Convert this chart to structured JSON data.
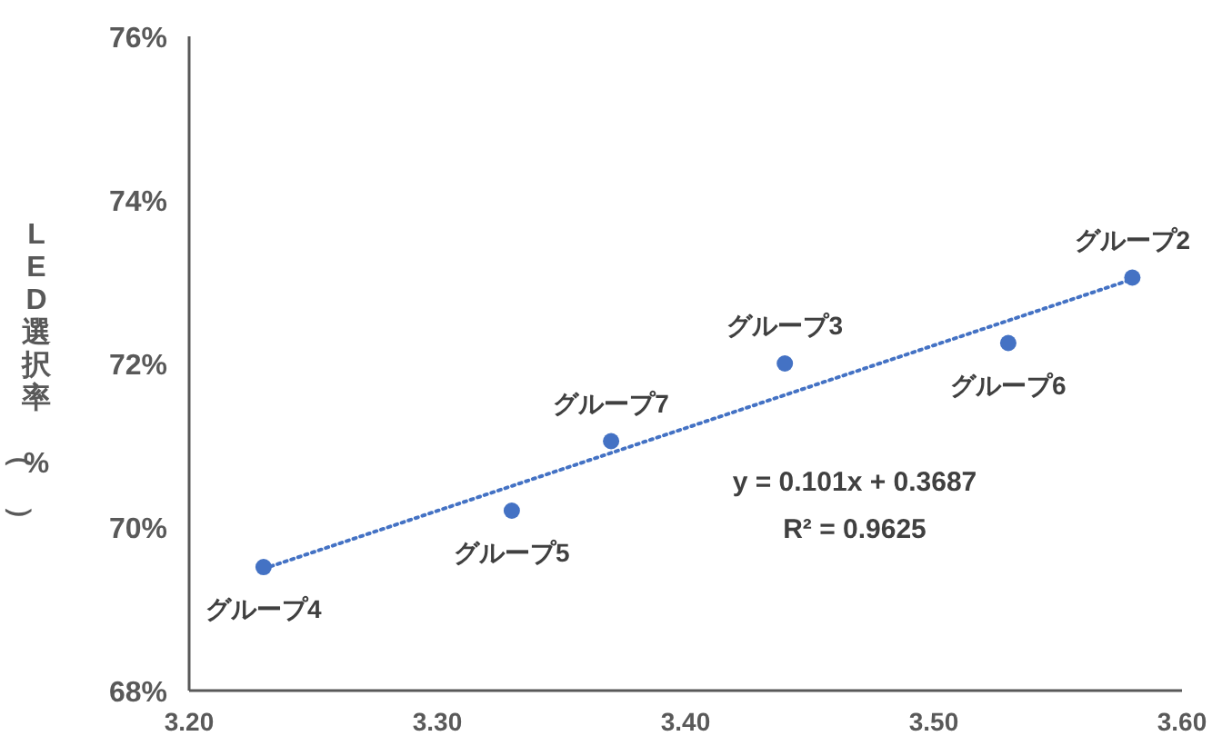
{
  "chart_data": {
    "type": "scatter",
    "ylabel": "LED選択率（%）",
    "xlim": [
      3.2,
      3.6
    ],
    "xticks": [
      {
        "value": 3.2,
        "label": "3.20"
      },
      {
        "value": 3.3,
        "label": "3.30"
      },
      {
        "value": 3.4,
        "label": "3.40"
      },
      {
        "value": 3.5,
        "label": "3.50"
      },
      {
        "value": 3.6,
        "label": "3.60"
      }
    ],
    "ylim": [
      68,
      76
    ],
    "yticks": [
      {
        "value": 68,
        "label": "68%"
      },
      {
        "value": 70,
        "label": "70%"
      },
      {
        "value": 72,
        "label": "72%"
      },
      {
        "value": 74,
        "label": "74%"
      },
      {
        "value": 76,
        "label": "76%"
      }
    ],
    "grid": false,
    "series": [
      {
        "marker": "circle",
        "color": "#4472c4",
        "x": [
          3.23,
          3.33,
          3.37,
          3.44,
          3.53,
          3.58
        ],
        "values": [
          69.51,
          70.2,
          71.05,
          72.0,
          72.25,
          73.05
        ]
      },
      {
        "type": "line",
        "color": "#4472c4",
        "line_style": "dotted",
        "x": [
          3.23,
          3.58
        ],
        "values": [
          69.49,
          73.03
        ]
      }
    ],
    "annotations": [
      {
        "text": "グループ4",
        "x": 3.23,
        "y": 69.51
      },
      {
        "text": "グループ5",
        "x": 3.33,
        "y": 70.2
      },
      {
        "text": "グループ7",
        "x": 3.37,
        "y": 71.05
      },
      {
        "text": "グループ3",
        "x": 3.44,
        "y": 72.0
      },
      {
        "text": "グループ6",
        "x": 3.53,
        "y": 72.25
      },
      {
        "text": "グループ2",
        "x": 3.58,
        "y": 73.05
      },
      "y = 0.101x + 0.3687",
      "R² = 0.9625"
    ]
  }
}
